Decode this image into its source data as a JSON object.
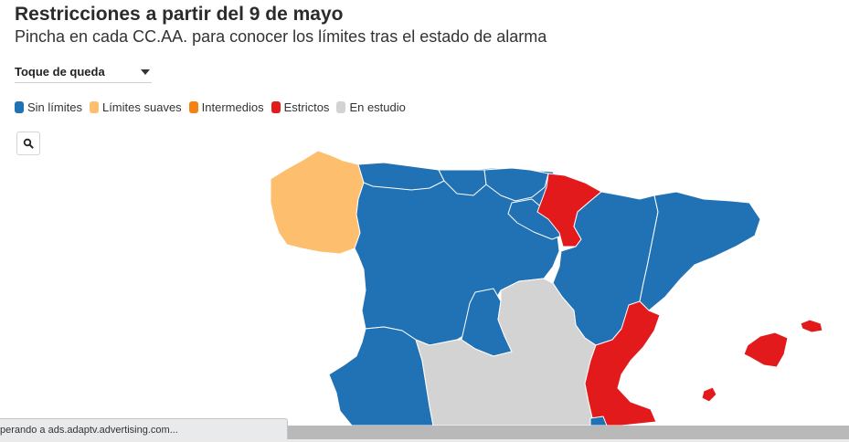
{
  "header": {
    "title": "Restricciones a partir del 9 de mayo",
    "subtitle": "Pincha en cada CC.AA. para conocer los límites tras el estado de alarma"
  },
  "filter": {
    "selected": "Toque de queda"
  },
  "legend": [
    {
      "label": "Sin límites",
      "color": "#2171b5"
    },
    {
      "label": "Límites suaves",
      "color": "#fdbe6e"
    },
    {
      "label": "Intermedios",
      "color": "#f58113"
    },
    {
      "label": "Estrictos",
      "color": "#e31a1c"
    },
    {
      "label": "En estudio",
      "color": "#d3d3d3"
    }
  ],
  "map": {
    "regions": {
      "galicia": "Límites suaves",
      "asturias": "Sin límites",
      "cantabria": "Sin límites",
      "pais_vasco": "Sin límites",
      "navarra": "Estrictos",
      "la_rioja": "Sin límites",
      "aragon": "Sin límites",
      "cataluna": "Sin límites",
      "castilla_y_leon": "Sin límites",
      "madrid": "Sin límites",
      "castilla_la_mancha": "En estudio",
      "extremadura": "Sin límites",
      "comunidad_valenciana": "Estrictos",
      "baleares": "Estrictos"
    }
  },
  "search_icon": "search-icon",
  "browser": {
    "status_text": "perando a ads.adaptv.advertising.com..."
  }
}
